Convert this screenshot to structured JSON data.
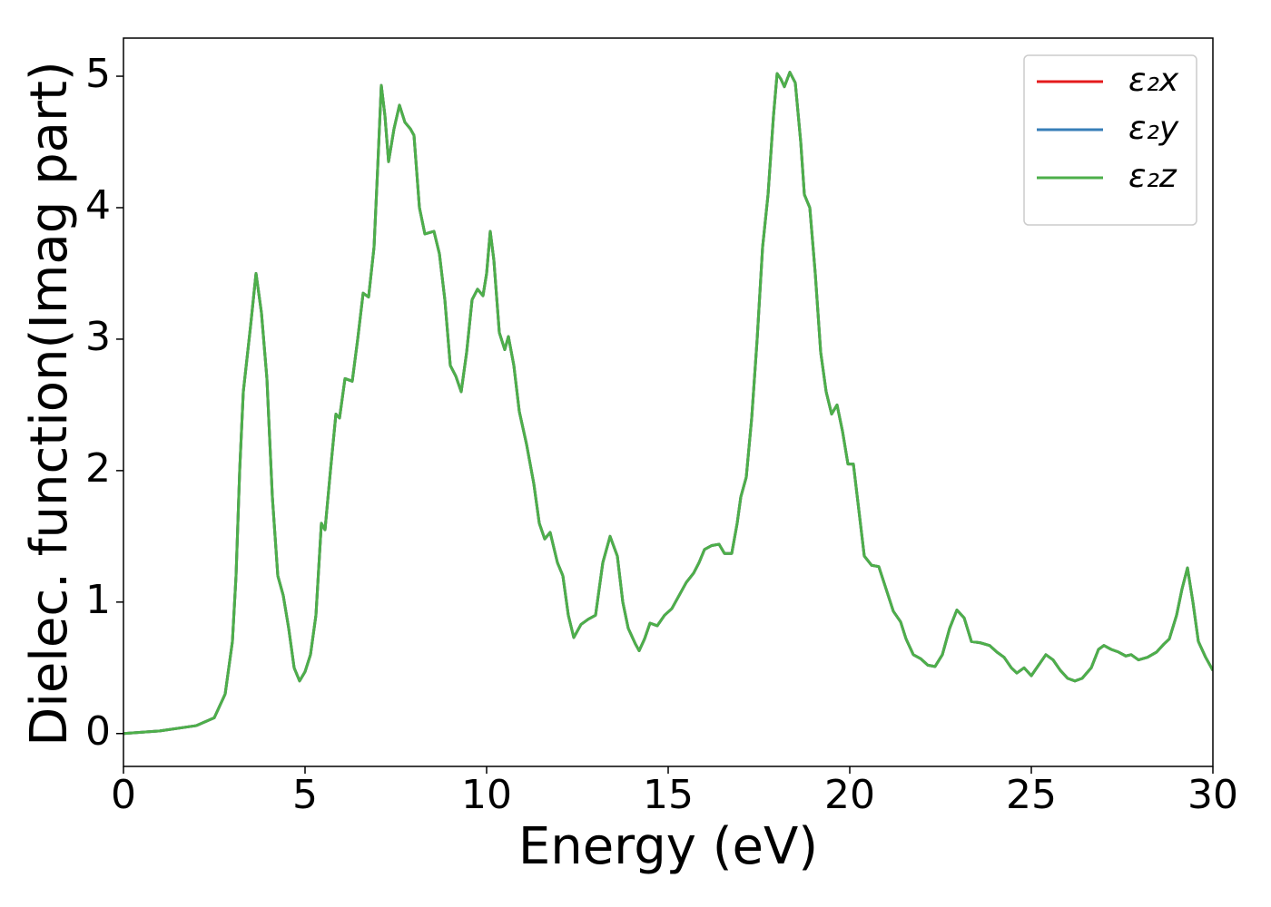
{
  "chart_data": {
    "type": "line",
    "xlabel": "Energy (eV)",
    "ylabel": "Dielec. function(Imag part)",
    "x": [
      0,
      1,
      2,
      2.5,
      2.8,
      3.0,
      3.1,
      3.2,
      3.3,
      3.4,
      3.5,
      3.65,
      3.8,
      3.95,
      4.1,
      4.25,
      4.4,
      4.55,
      4.7,
      4.85,
      5.0,
      5.15,
      5.3,
      5.45,
      5.55,
      5.7,
      5.85,
      5.95,
      6.1,
      6.3,
      6.45,
      6.6,
      6.75,
      6.9,
      7.0,
      7.1,
      7.2,
      7.3,
      7.45,
      7.6,
      7.75,
      7.9,
      8.0,
      8.15,
      8.3,
      8.55,
      8.7,
      8.85,
      9.0,
      9.15,
      9.3,
      9.45,
      9.6,
      9.75,
      9.9,
      10.0,
      10.1,
      10.2,
      10.35,
      10.5,
      10.6,
      10.75,
      10.9,
      11.1,
      11.3,
      11.45,
      11.6,
      11.75,
      11.95,
      12.1,
      12.25,
      12.4,
      12.6,
      12.8,
      13.0,
      13.2,
      13.4,
      13.6,
      13.75,
      13.9,
      14.1,
      14.2,
      14.35,
      14.5,
      14.7,
      14.9,
      15.1,
      15.3,
      15.5,
      15.7,
      15.85,
      16.0,
      16.2,
      16.4,
      16.55,
      16.75,
      16.9,
      17.0,
      17.15,
      17.3,
      17.45,
      17.6,
      17.75,
      17.9,
      18.0,
      18.1,
      18.2,
      18.35,
      18.5,
      18.65,
      18.75,
      18.9,
      19.05,
      19.2,
      19.35,
      19.5,
      19.65,
      19.8,
      19.95,
      20.1,
      20.25,
      20.4,
      20.6,
      20.8,
      21.0,
      21.2,
      21.4,
      21.55,
      21.75,
      21.95,
      22.15,
      22.35,
      22.55,
      22.75,
      22.95,
      23.15,
      23.35,
      23.6,
      23.85,
      24.05,
      24.25,
      24.45,
      24.6,
      24.8,
      25.0,
      25.2,
      25.4,
      25.6,
      25.8,
      26.0,
      26.2,
      26.4,
      26.65,
      26.85,
      27.0,
      27.2,
      27.4,
      27.6,
      27.75,
      27.95,
      28.2,
      28.45,
      28.65,
      28.8,
      29.0,
      29.15,
      29.3,
      29.45,
      29.6,
      29.8,
      30.0
    ],
    "series": [
      {
        "name": "ε₂x",
        "color": "#e41a1c",
        "values": [
          0,
          0.02,
          0.06,
          0.12,
          0.3,
          0.7,
          1.2,
          2.0,
          2.6,
          2.85,
          3.1,
          3.5,
          3.2,
          2.7,
          1.8,
          1.2,
          1.05,
          0.8,
          0.5,
          0.4,
          0.47,
          0.6,
          0.9,
          1.6,
          1.55,
          2.0,
          2.43,
          2.4,
          2.7,
          2.68,
          3.0,
          3.35,
          3.32,
          3.7,
          4.3,
          4.93,
          4.7,
          4.35,
          4.6,
          4.78,
          4.65,
          4.6,
          4.55,
          4.0,
          3.8,
          3.82,
          3.65,
          3.3,
          2.8,
          2.72,
          2.6,
          2.9,
          3.3,
          3.38,
          3.33,
          3.5,
          3.82,
          3.6,
          3.05,
          2.92,
          3.02,
          2.8,
          2.45,
          2.2,
          1.9,
          1.6,
          1.48,
          1.53,
          1.3,
          1.2,
          0.9,
          0.73,
          0.83,
          0.87,
          0.9,
          1.3,
          1.5,
          1.35,
          1.0,
          0.8,
          0.68,
          0.63,
          0.72,
          0.84,
          0.82,
          0.9,
          0.95,
          1.05,
          1.15,
          1.22,
          1.3,
          1.4,
          1.43,
          1.44,
          1.37,
          1.37,
          1.6,
          1.8,
          1.95,
          2.4,
          3.0,
          3.7,
          4.1,
          4.7,
          5.02,
          4.98,
          4.92,
          5.03,
          4.95,
          4.5,
          4.1,
          4.0,
          3.5,
          2.9,
          2.6,
          2.43,
          2.5,
          2.3,
          2.05,
          2.05,
          1.7,
          1.35,
          1.28,
          1.27,
          1.1,
          0.93,
          0.85,
          0.72,
          0.6,
          0.57,
          0.52,
          0.51,
          0.6,
          0.8,
          0.94,
          0.88,
          0.7,
          0.69,
          0.67,
          0.62,
          0.58,
          0.5,
          0.46,
          0.5,
          0.44,
          0.52,
          0.6,
          0.56,
          0.48,
          0.42,
          0.4,
          0.42,
          0.5,
          0.64,
          0.67,
          0.64,
          0.62,
          0.59,
          0.6,
          0.56,
          0.58,
          0.62,
          0.68,
          0.72,
          0.9,
          1.1,
          1.26,
          1.0,
          0.7,
          0.58,
          0.48
        ]
      },
      {
        "name": "ε₂y",
        "color": "#377eb8",
        "values": [
          0,
          0.02,
          0.06,
          0.12,
          0.3,
          0.7,
          1.2,
          2.0,
          2.6,
          2.85,
          3.1,
          3.5,
          3.2,
          2.7,
          1.8,
          1.2,
          1.05,
          0.8,
          0.5,
          0.4,
          0.47,
          0.6,
          0.9,
          1.6,
          1.55,
          2.0,
          2.43,
          2.4,
          2.7,
          2.68,
          3.0,
          3.35,
          3.32,
          3.7,
          4.3,
          4.93,
          4.7,
          4.35,
          4.6,
          4.78,
          4.65,
          4.6,
          4.55,
          4.0,
          3.8,
          3.82,
          3.65,
          3.3,
          2.8,
          2.72,
          2.6,
          2.9,
          3.3,
          3.38,
          3.33,
          3.5,
          3.82,
          3.6,
          3.05,
          2.92,
          3.02,
          2.8,
          2.45,
          2.2,
          1.9,
          1.6,
          1.48,
          1.53,
          1.3,
          1.2,
          0.9,
          0.73,
          0.83,
          0.87,
          0.9,
          1.3,
          1.5,
          1.35,
          1.0,
          0.8,
          0.68,
          0.63,
          0.72,
          0.84,
          0.82,
          0.9,
          0.95,
          1.05,
          1.15,
          1.22,
          1.3,
          1.4,
          1.43,
          1.44,
          1.37,
          1.37,
          1.6,
          1.8,
          1.95,
          2.4,
          3.0,
          3.7,
          4.1,
          4.7,
          5.02,
          4.98,
          4.92,
          5.03,
          4.95,
          4.5,
          4.1,
          4.0,
          3.5,
          2.9,
          2.6,
          2.43,
          2.5,
          2.3,
          2.05,
          2.05,
          1.7,
          1.35,
          1.28,
          1.27,
          1.1,
          0.93,
          0.85,
          0.72,
          0.6,
          0.57,
          0.52,
          0.51,
          0.6,
          0.8,
          0.94,
          0.88,
          0.7,
          0.69,
          0.67,
          0.62,
          0.58,
          0.5,
          0.46,
          0.5,
          0.44,
          0.52,
          0.6,
          0.56,
          0.48,
          0.42,
          0.4,
          0.42,
          0.5,
          0.64,
          0.67,
          0.64,
          0.62,
          0.59,
          0.6,
          0.56,
          0.58,
          0.62,
          0.68,
          0.72,
          0.9,
          1.1,
          1.26,
          1.0,
          0.7,
          0.58,
          0.48
        ]
      },
      {
        "name": "ε₂z",
        "color": "#4daf4a",
        "values": [
          0,
          0.02,
          0.06,
          0.12,
          0.3,
          0.7,
          1.2,
          2.0,
          2.6,
          2.85,
          3.1,
          3.5,
          3.2,
          2.7,
          1.8,
          1.2,
          1.05,
          0.8,
          0.5,
          0.4,
          0.47,
          0.6,
          0.9,
          1.6,
          1.55,
          2.0,
          2.43,
          2.4,
          2.7,
          2.68,
          3.0,
          3.35,
          3.32,
          3.7,
          4.3,
          4.93,
          4.7,
          4.35,
          4.6,
          4.78,
          4.65,
          4.6,
          4.55,
          4.0,
          3.8,
          3.82,
          3.65,
          3.3,
          2.8,
          2.72,
          2.6,
          2.9,
          3.3,
          3.38,
          3.33,
          3.5,
          3.82,
          3.6,
          3.05,
          2.92,
          3.02,
          2.8,
          2.45,
          2.2,
          1.9,
          1.6,
          1.48,
          1.53,
          1.3,
          1.2,
          0.9,
          0.73,
          0.83,
          0.87,
          0.9,
          1.3,
          1.5,
          1.35,
          1.0,
          0.8,
          0.68,
          0.63,
          0.72,
          0.84,
          0.82,
          0.9,
          0.95,
          1.05,
          1.15,
          1.22,
          1.3,
          1.4,
          1.43,
          1.44,
          1.37,
          1.37,
          1.6,
          1.8,
          1.95,
          2.4,
          3.0,
          3.7,
          4.1,
          4.7,
          5.02,
          4.98,
          4.92,
          5.03,
          4.95,
          4.5,
          4.1,
          4.0,
          3.5,
          2.9,
          2.6,
          2.43,
          2.5,
          2.3,
          2.05,
          2.05,
          1.7,
          1.35,
          1.28,
          1.27,
          1.1,
          0.93,
          0.85,
          0.72,
          0.6,
          0.57,
          0.52,
          0.51,
          0.6,
          0.8,
          0.94,
          0.88,
          0.7,
          0.69,
          0.67,
          0.62,
          0.58,
          0.5,
          0.46,
          0.5,
          0.44,
          0.52,
          0.6,
          0.56,
          0.48,
          0.42,
          0.4,
          0.42,
          0.5,
          0.64,
          0.67,
          0.64,
          0.62,
          0.59,
          0.6,
          0.56,
          0.58,
          0.62,
          0.68,
          0.72,
          0.9,
          1.1,
          1.26,
          1.0,
          0.7,
          0.58,
          0.48
        ]
      }
    ],
    "xlim": [
      0,
      30
    ],
    "xticks": [
      0,
      5,
      10,
      15,
      20,
      25,
      30
    ],
    "ylim": [
      -0.25,
      5.29
    ],
    "yticks": [
      0,
      1,
      2,
      3,
      4,
      5
    ],
    "grid": false,
    "legend": "upper right"
  }
}
